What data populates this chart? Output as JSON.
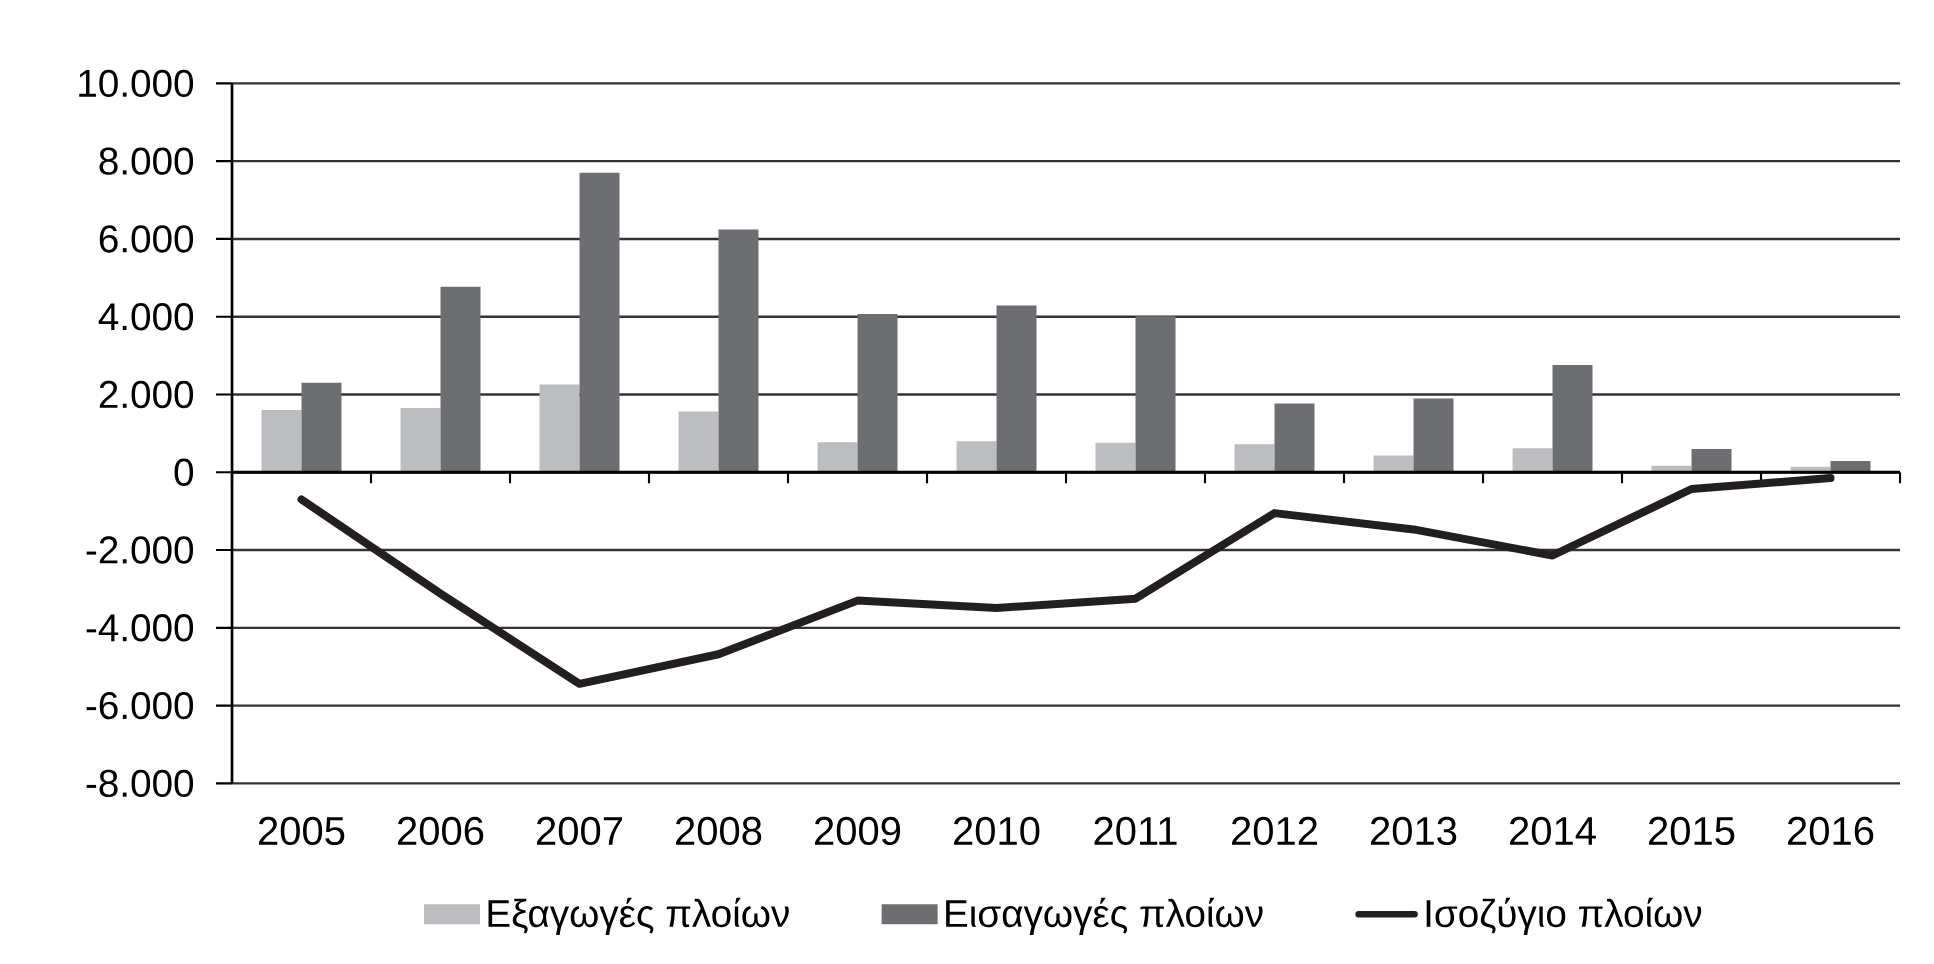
{
  "chart_data": {
    "type": "bar",
    "categories": [
      "2005",
      "2006",
      "2007",
      "2008",
      "2009",
      "2010",
      "2011",
      "2012",
      "2013",
      "2014",
      "2015",
      "2016"
    ],
    "series": [
      {
        "name": "Εξαγωγές πλοίων",
        "color": "#bcbdc0",
        "values": [
          1600,
          1650,
          2260,
          1560,
          770,
          800,
          760,
          720,
          430,
          620,
          170,
          140
        ]
      },
      {
        "name": "Εισαγωγές πλοίων",
        "color": "#6d6e71",
        "values": [
          2300,
          4770,
          7700,
          6240,
          4070,
          4290,
          4010,
          1770,
          1900,
          2760,
          600,
          290
        ]
      },
      {
        "name": "Ισοζύγιο πλοίων",
        "type": "line",
        "color": "#231f20",
        "values": [
          -700,
          -3120,
          -5440,
          -4680,
          -3300,
          -3490,
          -3250,
          -1050,
          -1470,
          -2140,
          -430,
          -150
        ]
      }
    ],
    "ylim": [
      -8000,
      10000
    ],
    "yticks": [
      {
        "value": -8000,
        "label": "-8.000"
      },
      {
        "value": -6000,
        "label": "-6.000"
      },
      {
        "value": -4000,
        "label": "-4.000"
      },
      {
        "value": -2000,
        "label": "-2.000"
      },
      0,
      {
        "value": 2000,
        "label": "2.000"
      },
      {
        "value": 4000,
        "label": "4.000"
      },
      {
        "value": 6000,
        "label": "6.000"
      },
      {
        "value": 8000,
        "label": "8.000"
      },
      {
        "value": 10000,
        "label": "10.000"
      }
    ],
    "grid": "y",
    "legend": "bottom",
    "marker": "none"
  }
}
